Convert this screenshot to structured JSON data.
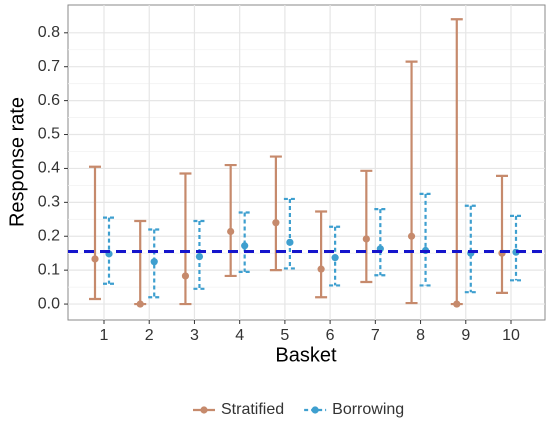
{
  "chart_data": {
    "type": "errorbar",
    "x_label": "Basket",
    "y_label": "Response rate",
    "categories": [
      "1",
      "2",
      "3",
      "4",
      "5",
      "6",
      "7",
      "8",
      "9",
      "10"
    ],
    "ylim": [
      -0.047,
      0.882
    ],
    "yticks": [
      {
        "value": 0,
        "label": "0.0"
      },
      0.1,
      0.2,
      0.3,
      0.4,
      0.5,
      0.6,
      0.7,
      0.8
    ],
    "grid": true,
    "hline": 0.155,
    "hline_color": "#1515cc",
    "legend": "bottom",
    "series": [
      {
        "name": "Stratified",
        "color": "#c68a6c",
        "dashed": false,
        "values": [
          0.133,
          0.0,
          0.083,
          0.214,
          0.24,
          0.103,
          0.192,
          0.2,
          0.0,
          0.15
        ],
        "lower": [
          0.015,
          0.0,
          0.0,
          0.083,
          0.1,
          0.02,
          0.065,
          0.003,
          0.0,
          0.033
        ],
        "upper": [
          0.405,
          0.245,
          0.385,
          0.41,
          0.435,
          0.273,
          0.393,
          0.715,
          0.84,
          0.378
        ]
      },
      {
        "name": "Borrowing",
        "color": "#3e9fcf",
        "dashed": true,
        "values": [
          0.148,
          0.125,
          0.14,
          0.172,
          0.182,
          0.137,
          0.163,
          0.158,
          0.15,
          0.153
        ],
        "lower": [
          0.06,
          0.02,
          0.045,
          0.095,
          0.105,
          0.055,
          0.085,
          0.055,
          0.035,
          0.07
        ],
        "upper": [
          0.255,
          0.22,
          0.245,
          0.27,
          0.31,
          0.228,
          0.28,
          0.325,
          0.29,
          0.26
        ]
      }
    ]
  }
}
